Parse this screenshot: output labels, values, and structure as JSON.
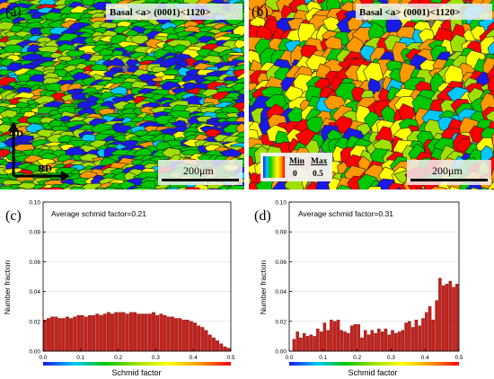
{
  "colors": {
    "scale": [
      "#1a1ae6",
      "#00c8ff",
      "#00c800",
      "#a0e000",
      "#ffff00",
      "#ff9900",
      "#ff0000"
    ],
    "bar_fill": "#c8201a",
    "bar_edge": "#5a0a08",
    "legend_box": "#f2f2f2"
  },
  "maps": [
    {
      "panel_label": "(a)",
      "title": "Basal <a> (0001)<1120>",
      "scalebar_label": "200μm",
      "axis_vertical": "ND",
      "axis_horizontal": "RD",
      "grain_style": "elongated, fine",
      "dominant_colors": "green, yellow-green, blue"
    },
    {
      "panel_label": "(b)",
      "title": "Basal <a> (0001)<1120>",
      "scalebar_label": "200μm",
      "legend": {
        "min_label": "Min",
        "max_label": "Max",
        "min_value": "0",
        "max_value": "0.5"
      },
      "grain_style": "equiaxed, coarse",
      "dominant_colors": "red, orange, yellow, green"
    }
  ],
  "chart_data": [
    {
      "panel_label": "(c)",
      "type": "bar",
      "annotation": "Average schmid factor=0.21",
      "xlabel": "Schmid factor",
      "ylabel": "Number fraction",
      "xlim": [
        0,
        0.5
      ],
      "ylim": [
        0,
        0.1
      ],
      "xticks": [
        "0.0",
        "0.1",
        "0.2",
        "0.3",
        "0.4",
        "0.5"
      ],
      "yticks": [
        "0.00",
        "0.02",
        "0.04",
        "0.06",
        "0.08",
        "0.10"
      ],
      "bin_width": 0.01,
      "x": [
        0.005,
        0.015,
        0.025,
        0.035,
        0.045,
        0.055,
        0.065,
        0.075,
        0.085,
        0.095,
        0.105,
        0.115,
        0.125,
        0.135,
        0.145,
        0.155,
        0.165,
        0.175,
        0.185,
        0.195,
        0.205,
        0.215,
        0.225,
        0.235,
        0.245,
        0.255,
        0.265,
        0.275,
        0.285,
        0.295,
        0.305,
        0.315,
        0.325,
        0.335,
        0.345,
        0.355,
        0.365,
        0.375,
        0.385,
        0.395,
        0.405,
        0.415,
        0.425,
        0.435,
        0.445,
        0.455,
        0.465,
        0.475,
        0.485,
        0.495
      ],
      "values": [
        0.021,
        0.022,
        0.023,
        0.023,
        0.022,
        0.022,
        0.023,
        0.022,
        0.023,
        0.024,
        0.024,
        0.023,
        0.024,
        0.024,
        0.025,
        0.024,
        0.025,
        0.026,
        0.025,
        0.026,
        0.026,
        0.026,
        0.025,
        0.026,
        0.026,
        0.025,
        0.025,
        0.025,
        0.025,
        0.026,
        0.024,
        0.025,
        0.024,
        0.023,
        0.023,
        0.022,
        0.022,
        0.021,
        0.021,
        0.02,
        0.019,
        0.017,
        0.016,
        0.014,
        0.011,
        0.009,
        0.007,
        0.005,
        0.003,
        0.002
      ]
    },
    {
      "panel_label": "(d)",
      "type": "bar",
      "annotation": "Average schmid factor=0.31",
      "xlabel": "Schmid factor",
      "ylabel": "Number fraction",
      "xlim": [
        0,
        0.5
      ],
      "ylim": [
        0,
        0.1
      ],
      "xticks": [
        "0.0",
        "0.1",
        "0.2",
        "0.3",
        "0.4",
        "0.5"
      ],
      "yticks": [
        "0.00",
        "0.02",
        "0.04",
        "0.06",
        "0.08",
        "0.10"
      ],
      "bin_width": 0.01,
      "x": [
        0.005,
        0.015,
        0.025,
        0.035,
        0.045,
        0.055,
        0.065,
        0.075,
        0.085,
        0.095,
        0.105,
        0.115,
        0.125,
        0.135,
        0.145,
        0.155,
        0.165,
        0.175,
        0.185,
        0.195,
        0.205,
        0.215,
        0.225,
        0.235,
        0.245,
        0.255,
        0.265,
        0.275,
        0.285,
        0.295,
        0.305,
        0.315,
        0.325,
        0.335,
        0.345,
        0.355,
        0.365,
        0.375,
        0.385,
        0.395,
        0.405,
        0.415,
        0.425,
        0.435,
        0.445,
        0.455,
        0.465,
        0.475,
        0.485,
        0.495
      ],
      "values": [
        0.0,
        0.008,
        0.013,
        0.009,
        0.012,
        0.01,
        0.011,
        0.01,
        0.015,
        0.013,
        0.019,
        0.014,
        0.021,
        0.02,
        0.021,
        0.014,
        0.013,
        0.012,
        0.017,
        0.018,
        0.018,
        0.009,
        0.014,
        0.011,
        0.014,
        0.012,
        0.015,
        0.013,
        0.015,
        0.011,
        0.014,
        0.012,
        0.013,
        0.014,
        0.019,
        0.02,
        0.016,
        0.021,
        0.017,
        0.022,
        0.026,
        0.03,
        0.021,
        0.034,
        0.049,
        0.044,
        0.045,
        0.047,
        0.043,
        0.045
      ]
    }
  ]
}
